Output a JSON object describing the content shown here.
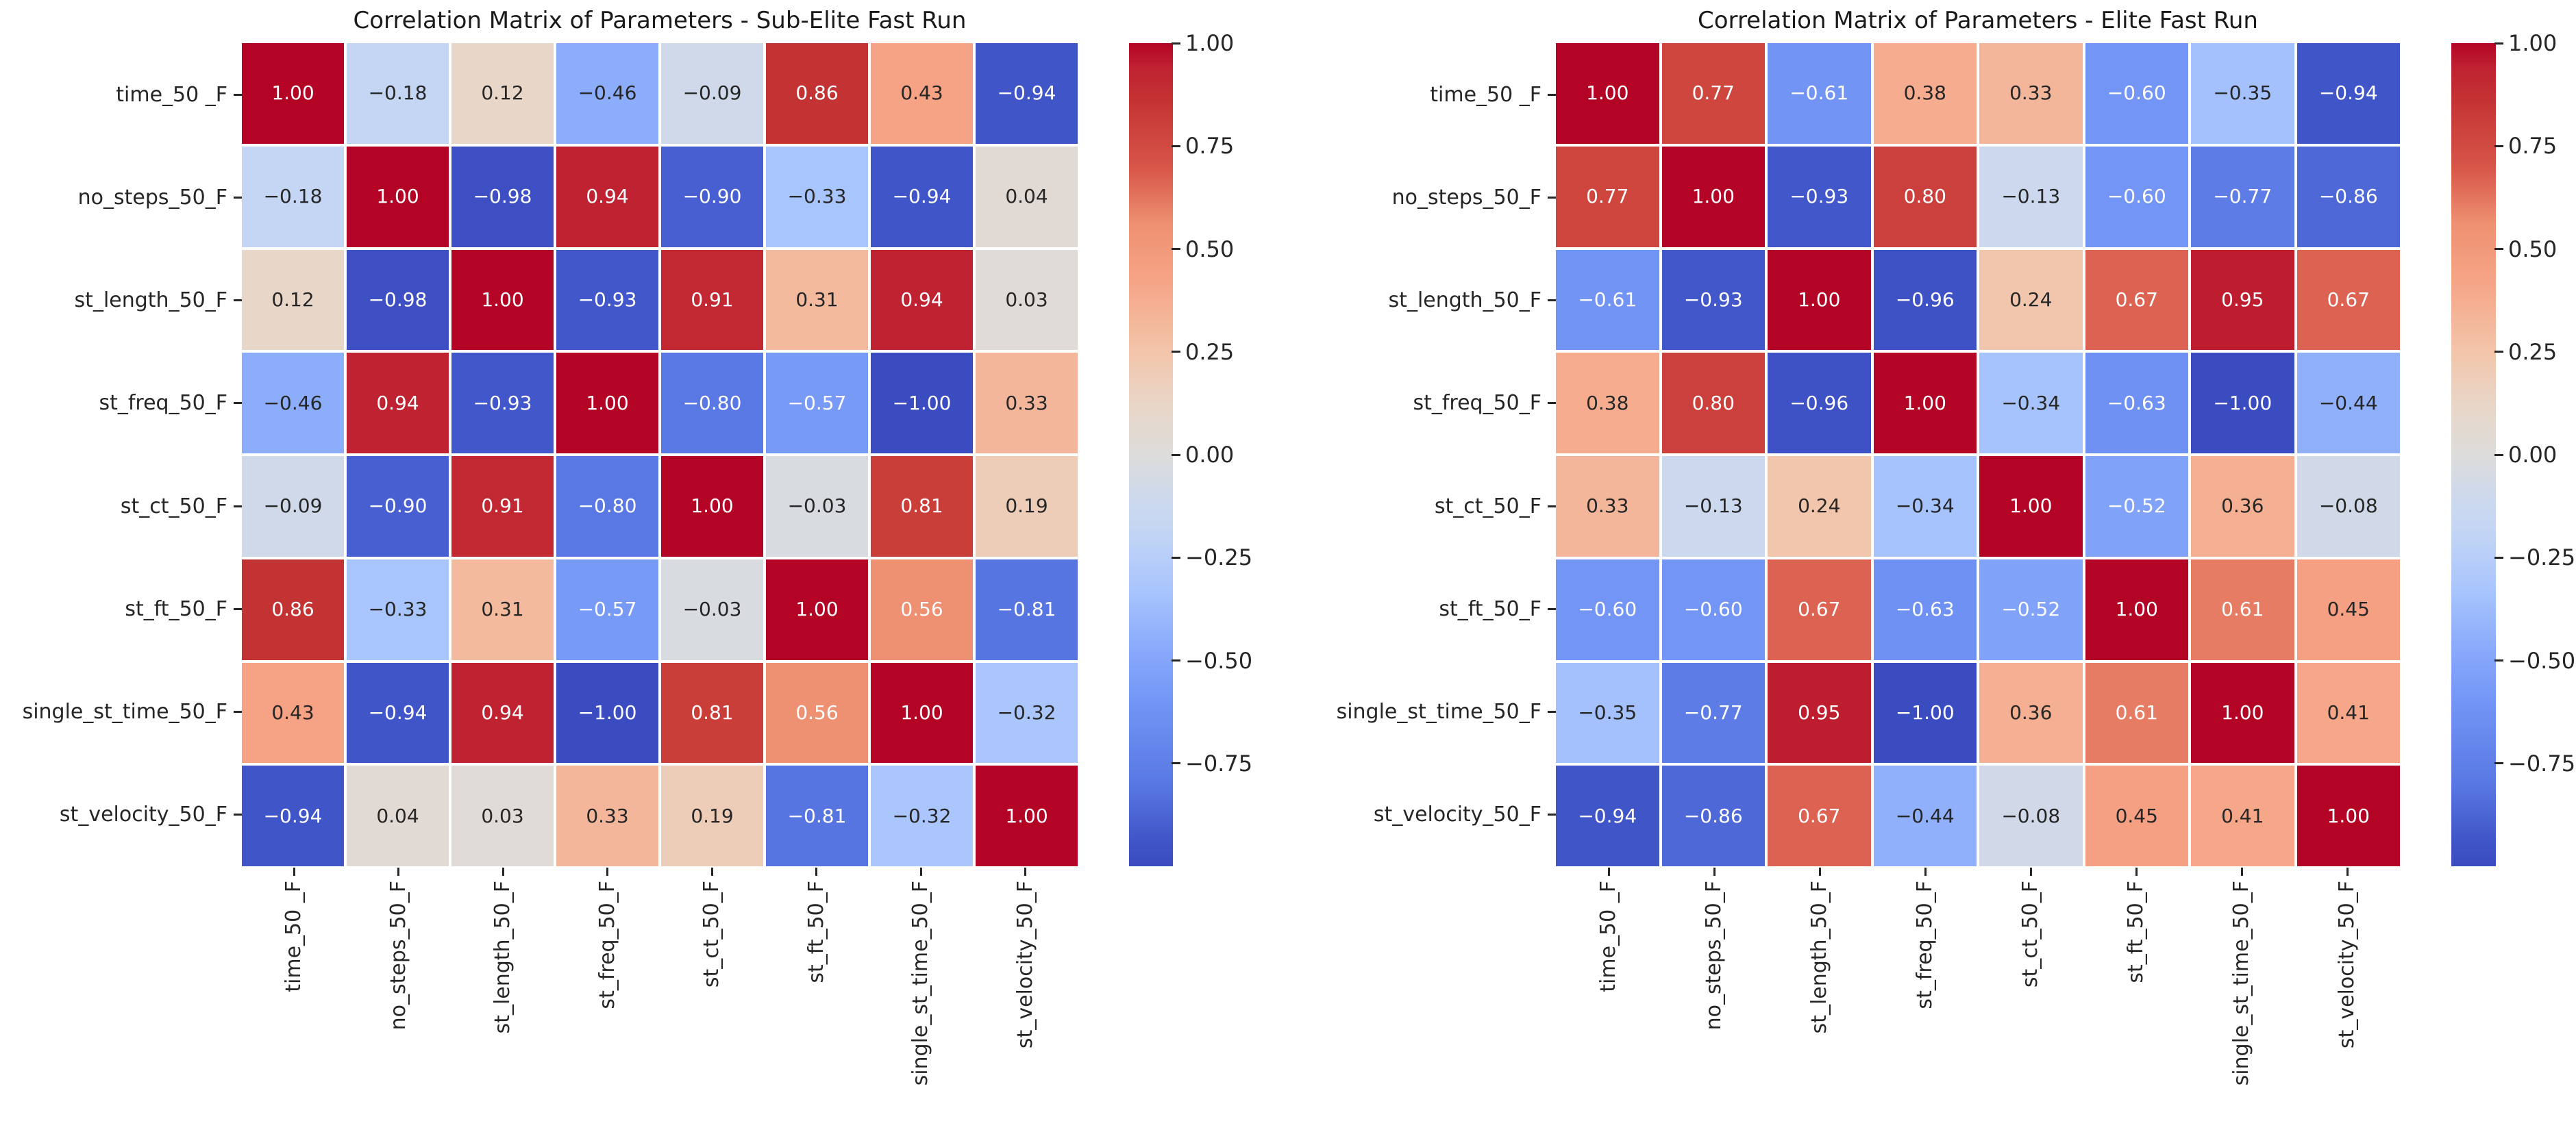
{
  "chart_data": [
    {
      "type": "heatmap",
      "title": "Correlation Matrix of Parameters - Sub-Elite Fast Run",
      "x_labels": [
        "time_50 _F",
        "no_steps_50_F",
        "st_length_50_F",
        "st_freq_50_F",
        "st_ct_50_F",
        "st_ft_50_F",
        "single_st_time_50_F",
        "st_velocity_50_F"
      ],
      "y_labels": [
        "time_50 _F",
        "no_steps_50_F",
        "st_length_50_F",
        "st_freq_50_F",
        "st_ct_50_F",
        "st_ft_50_F",
        "single_st_time_50_F",
        "st_velocity_50_F"
      ],
      "values": [
        [
          1.0,
          -0.18,
          0.12,
          -0.46,
          -0.09,
          0.86,
          0.43,
          -0.94
        ],
        [
          -0.18,
          1.0,
          -0.98,
          0.94,
          -0.9,
          -0.33,
          -0.94,
          0.04
        ],
        [
          0.12,
          -0.98,
          1.0,
          -0.93,
          0.91,
          0.31,
          0.94,
          0.03
        ],
        [
          -0.46,
          0.94,
          -0.93,
          1.0,
          -0.8,
          -0.57,
          -1.0,
          0.33
        ],
        [
          -0.09,
          -0.9,
          0.91,
          -0.8,
          1.0,
          -0.03,
          0.81,
          0.19
        ],
        [
          0.86,
          -0.33,
          0.31,
          -0.57,
          -0.03,
          1.0,
          0.56,
          -0.81
        ],
        [
          0.43,
          -0.94,
          0.94,
          -1.0,
          0.81,
          0.56,
          1.0,
          -0.32
        ],
        [
          -0.94,
          0.04,
          0.03,
          0.33,
          0.19,
          -0.81,
          -0.32,
          1.0
        ]
      ],
      "vmin": -1,
      "vmax": 1,
      "colormap": "coolwarm",
      "colorbar_ticks": [
        1.0,
        0.75,
        0.5,
        0.25,
        0.0,
        -0.25,
        -0.5,
        -0.75
      ],
      "annotation_decimals": 2,
      "grid": false,
      "legend_position": "right-colorbar"
    },
    {
      "type": "heatmap",
      "title": "Correlation Matrix of Parameters - Elite Fast Run",
      "x_labels": [
        "time_50 _F",
        "no_steps_50_F",
        "st_length_50_F",
        "st_freq_50_F",
        "st_ct_50_F",
        "st_ft_50_F",
        "single_st_time_50_F",
        "st_velocity_50_F"
      ],
      "y_labels": [
        "time_50 _F",
        "no_steps_50_F",
        "st_length_50_F",
        "st_freq_50_F",
        "st_ct_50_F",
        "st_ft_50_F",
        "single_st_time_50_F",
        "st_velocity_50_F"
      ],
      "values": [
        [
          1.0,
          0.77,
          -0.61,
          0.38,
          0.33,
          -0.6,
          -0.35,
          -0.94
        ],
        [
          0.77,
          1.0,
          -0.93,
          0.8,
          -0.13,
          -0.6,
          -0.77,
          -0.86
        ],
        [
          -0.61,
          -0.93,
          1.0,
          -0.96,
          0.24,
          0.67,
          0.95,
          0.67
        ],
        [
          0.38,
          0.8,
          -0.96,
          1.0,
          -0.34,
          -0.63,
          -1.0,
          -0.44
        ],
        [
          0.33,
          -0.13,
          0.24,
          -0.34,
          1.0,
          -0.52,
          0.36,
          -0.08
        ],
        [
          -0.6,
          -0.6,
          0.67,
          -0.63,
          -0.52,
          1.0,
          0.61,
          0.45
        ],
        [
          -0.35,
          -0.77,
          0.95,
          -1.0,
          0.36,
          0.61,
          1.0,
          0.41
        ],
        [
          -0.94,
          -0.86,
          0.67,
          -0.44,
          -0.08,
          0.45,
          0.41,
          1.0
        ]
      ],
      "vmin": -1,
      "vmax": 1,
      "colormap": "coolwarm",
      "colorbar_ticks": [
        1.0,
        0.75,
        0.5,
        0.25,
        0.0,
        -0.25,
        -0.5,
        -0.75
      ],
      "annotation_decimals": 2,
      "grid": false,
      "legend_position": "right-colorbar"
    }
  ],
  "colors": {
    "colormap_min": "#3b4cc0",
    "colormap_mid": "#dddcda",
    "colormap_max": "#b40426",
    "annotation_dark": "#262626",
    "annotation_light": "#ffffff",
    "background": "#ffffff"
  }
}
